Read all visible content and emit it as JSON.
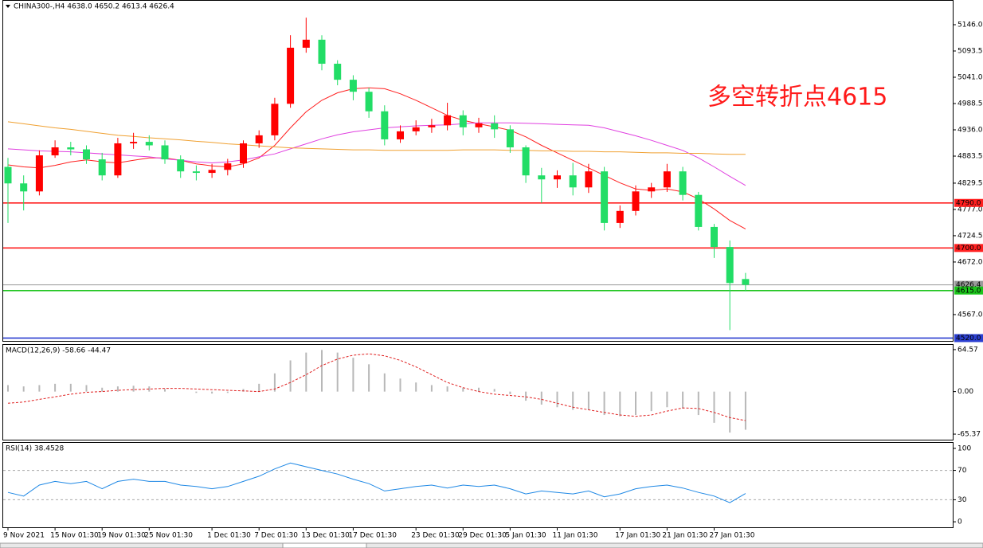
{
  "chart_data": [
    {
      "type": "candlestick",
      "title": "CHINA300-,H4  4638.0 4650.2 4613.4 4626.4",
      "annotation": "多空转折点4615",
      "categories": [
        "9 Nov 2021",
        null,
        null,
        "15 Nov 01:30",
        null,
        null,
        "19 Nov 01:30",
        null,
        null,
        "25 Nov 01:30",
        null,
        null,
        null,
        "1 Dec 01:30",
        null,
        null,
        "7 Dec 01:30",
        null,
        null,
        "13 Dec 01:30",
        null,
        null,
        "17 Dec 01:30",
        null,
        null,
        null,
        "23 Dec 01:30",
        null,
        null,
        "29 Dec 01:30",
        null,
        null,
        "5 Jan 01:30",
        null,
        null,
        "11 Jan 01:30",
        null,
        null,
        null,
        "17 Jan 01:30",
        null,
        null,
        "21 Jan 01:30",
        null,
        null,
        "27 Jan 01:30",
        null,
        null
      ],
      "open": [
        4862,
        4829,
        4813,
        4885,
        4901,
        4897,
        4877,
        4845,
        4909,
        4912,
        4905,
        4877,
        4853,
        4850,
        4856,
        4869,
        4909,
        4925,
        4988,
        5100,
        5116,
        5068,
        5036,
        5012,
        4973,
        4917,
        4933,
        4941,
        4945,
        4965,
        4941,
        4949,
        4937,
        4901,
        4845,
        4837,
        4845,
        4821,
        4853,
        4750,
        4774,
        4813,
        4821,
        4853,
        4806,
        4742,
        4702,
        4638.0
      ],
      "high": [
        4880,
        4845,
        4895,
        4915,
        4912,
        4905,
        4890,
        4920,
        4930,
        4925,
        4915,
        4885,
        4865,
        4868,
        4878,
        4915,
        4935,
        5000,
        5125,
        5160,
        5125,
        5075,
        5045,
        5020,
        4985,
        4945,
        4955,
        4958,
        4990,
        4975,
        4960,
        4965,
        4945,
        4905,
        4860,
        4855,
        4870,
        4868,
        4862,
        4785,
        4825,
        4830,
        4868,
        4862,
        4812,
        4748,
        4715,
        4650.2
      ],
      "low": [
        4750,
        4775,
        4805,
        4880,
        4885,
        4868,
        4835,
        4840,
        4898,
        4895,
        4868,
        4840,
        4835,
        4840,
        4845,
        4860,
        4900,
        4915,
        4980,
        5090,
        5055,
        5025,
        4995,
        4960,
        4905,
        4910,
        4925,
        4930,
        4935,
        4925,
        4930,
        4920,
        4890,
        4830,
        4790,
        4820,
        4805,
        4810,
        4735,
        4740,
        4765,
        4800,
        4812,
        4795,
        4735,
        4680,
        4536,
        4613.4
      ],
      "close": [
        4829,
        4813,
        4885,
        4901,
        4897,
        4877,
        4845,
        4909,
        4912,
        4905,
        4877,
        4853,
        4850,
        4856,
        4869,
        4909,
        4925,
        4988,
        5100,
        5116,
        5068,
        5036,
        5012,
        4973,
        4917,
        4933,
        4941,
        4945,
        4965,
        4941,
        4949,
        4937,
        4901,
        4845,
        4837,
        4845,
        4821,
        4853,
        4750,
        4774,
        4813,
        4821,
        4853,
        4806,
        4742,
        4702,
        4630,
        4626.4
      ],
      "up_color": "#ff0000",
      "down_color": "#22dd66",
      "series": [
        {
          "color": "#ff2020",
          "values": [
            4866,
            4862,
            4860,
            4865,
            4872,
            4876,
            4872,
            4870,
            4875,
            4880,
            4880,
            4875,
            4868,
            4864,
            4862,
            4868,
            4880,
            4905,
            4940,
            4972,
            4995,
            5010,
            5018,
            5020,
            5018,
            5008,
            4995,
            4980,
            4965,
            4955,
            4948,
            4942,
            4935,
            4922,
            4905,
            4890,
            4875,
            4860,
            4845,
            4830,
            4818,
            4815,
            4818,
            4812,
            4798,
            4778,
            4755,
            4738
          ]
        },
        {
          "color": "#e040e0",
          "values": [
            4898,
            4896,
            4894,
            4893,
            4892,
            4890,
            4888,
            4886,
            4884,
            4882,
            4878,
            4875,
            4872,
            4870,
            4872,
            4876,
            4882,
            4888,
            4898,
            4908,
            4918,
            4926,
            4932,
            4936,
            4940,
            4942,
            4944,
            4945,
            4946,
            4948,
            4950,
            4950,
            4950,
            4949,
            4948,
            4947,
            4946,
            4945,
            4940,
            4932,
            4924,
            4915,
            4905,
            4895,
            4880,
            4862,
            4843,
            4825
          ]
        },
        {
          "color": "#f0a030",
          "values": [
            4952,
            4948,
            4944,
            4940,
            4937,
            4933,
            4929,
            4925,
            4923,
            4920,
            4918,
            4916,
            4913,
            4911,
            4908,
            4906,
            4904,
            4902,
            4900,
            4899,
            4898,
            4897,
            4896,
            4896,
            4895,
            4895,
            4895,
            4895,
            4895,
            4896,
            4896,
            4896,
            4895,
            4895,
            4894,
            4894,
            4893,
            4893,
            4892,
            4892,
            4891,
            4890,
            4890,
            4889,
            4889,
            4888,
            4887,
            4887
          ]
        }
      ],
      "levels": [
        {
          "value": 4790,
          "label": "4790.0",
          "color": "#ff2020"
        },
        {
          "value": 4700,
          "label": "4700.0",
          "color": "#ff2020"
        },
        {
          "value": 4626.4,
          "label": "4626.4",
          "color": "#9a9a9a"
        },
        {
          "value": 4615,
          "label": "4615.0",
          "color": "#1cc41c"
        },
        {
          "value": 4520,
          "label": "4520.0",
          "color": "#2b3fd0"
        }
      ],
      "ylim": [
        4514.4,
        5195.3
      ],
      "yticks": [
        {
          "value": 5146,
          "label": "5146.0"
        },
        {
          "value": 5093.5,
          "label": "5093.5"
        },
        {
          "value": 5041,
          "label": "5041.0"
        },
        {
          "value": 4988.5,
          "label": "4988.5"
        },
        {
          "value": 4936,
          "label": "4936.0"
        },
        {
          "value": 4883.5,
          "label": "4883.5"
        },
        {
          "value": 4829.5,
          "label": "4829.5"
        },
        {
          "value": 4777,
          "label": "4777.0"
        },
        {
          "value": 4724.5,
          "label": "4724.5"
        },
        {
          "value": 4672,
          "label": "4672.0"
        },
        {
          "value": 4567,
          "label": "4567.0"
        }
      ]
    },
    {
      "type": "macd",
      "title": "MACD(12,26,9) -58.66 -44.47",
      "series": [
        {
          "style": "bar",
          "color": "#b8b8b8",
          "values": [
            10,
            8,
            10,
            12,
            12,
            10,
            6,
            8,
            9,
            8,
            4,
            0,
            -2,
            -3,
            -2,
            4,
            12,
            28,
            48,
            60,
            64,
            60,
            52,
            42,
            28,
            20,
            14,
            10,
            8,
            6,
            6,
            4,
            -4,
            -14,
            -20,
            -24,
            -28,
            -28,
            -36,
            -38,
            -36,
            -30,
            -24,
            -26,
            -36,
            -48,
            -63,
            -58.66
          ]
        },
        {
          "style": "dashed",
          "color": "#e02020",
          "values": [
            -18,
            -16,
            -12,
            -8,
            -4,
            -1,
            0,
            2,
            3,
            4,
            5,
            5,
            4,
            3,
            2,
            1,
            0,
            4,
            14,
            26,
            40,
            50,
            56,
            58,
            55,
            48,
            38,
            26,
            14,
            6,
            0,
            -4,
            -6,
            -8,
            -12,
            -18,
            -24,
            -28,
            -32,
            -36,
            -38,
            -36,
            -30,
            -25,
            -26,
            -32,
            -40,
            -44.47
          ]
        }
      ],
      "ylim": [
        -73.9,
        71.8
      ],
      "yticks": [
        64.57,
        {
          "value": 0,
          "label": "0.00"
        },
        -65.37
      ]
    },
    {
      "type": "line",
      "title": "RSI(14) 38.4528",
      "color": "#1e88e5",
      "values": [
        40,
        35,
        50,
        55,
        52,
        55,
        45,
        55,
        58,
        55,
        55,
        50,
        48,
        45,
        48,
        55,
        62,
        72,
        80,
        75,
        70,
        65,
        58,
        52,
        42,
        45,
        48,
        50,
        46,
        50,
        48,
        50,
        45,
        38,
        42,
        40,
        38,
        42,
        34,
        38,
        45,
        48,
        50,
        46,
        40,
        35,
        26,
        38.45
      ],
      "levels": [
        70,
        30
      ],
      "ylim": [
        -7.5,
        107.5
      ],
      "yticks": [
        100,
        70,
        30,
        0
      ]
    }
  ]
}
